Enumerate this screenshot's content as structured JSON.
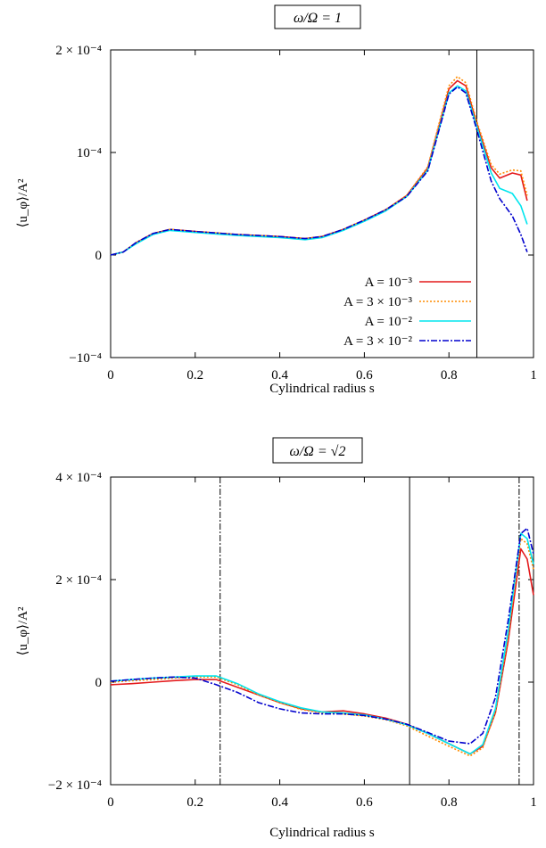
{
  "chart_data": [
    {
      "type": "line",
      "title": "ω/Ω = 1",
      "xlabel": "Cylindrical radius s",
      "ylabel": "⟨u_φ⟩/A²",
      "xlim": [
        0,
        1
      ],
      "ylim": [
        -0.0001,
        0.0002
      ],
      "x_ticks": [
        0,
        0.2,
        0.4,
        0.6,
        0.8,
        1
      ],
      "x_tick_labels": [
        "0",
        "0.2",
        "0.4",
        "0.6",
        "0.8",
        "1"
      ],
      "y_ticks": [
        -0.0001,
        0,
        0.0001,
        0.0002
      ],
      "y_tick_labels": [
        "−10⁻⁴",
        "0",
        "10⁻⁴",
        "2 × 10⁻⁴"
      ],
      "vlines": [
        {
          "x": 0.866,
          "style": "solid"
        }
      ],
      "legend": {
        "position": "bottom-right"
      },
      "series": [
        {
          "name": "A = 10⁻³",
          "color": "#e41a1c",
          "dash": "solid",
          "x": [
            0,
            0.03,
            0.06,
            0.1,
            0.14,
            0.2,
            0.3,
            0.4,
            0.46,
            0.5,
            0.55,
            0.6,
            0.65,
            0.7,
            0.75,
            0.8,
            0.82,
            0.84,
            0.866,
            0.9,
            0.92,
            0.95,
            0.97,
            0.985
          ],
          "y": [
            0,
            3e-06,
            1.2e-05,
            2.1e-05,
            2.5e-05,
            2.3e-05,
            2e-05,
            1.8e-05,
            1.6e-05,
            1.8e-05,
            2.5e-05,
            3.4e-05,
            4.4e-05,
            5.8e-05,
            8.5e-05,
            0.000162,
            0.00017,
            0.000165,
            0.000128,
            8.5e-05,
            7.5e-05,
            8e-05,
            7.8e-05,
            5.3e-05
          ]
        },
        {
          "name": "A = 3 × 10⁻³",
          "color": "#ff8c00",
          "dash": "dotted",
          "x": [
            0,
            0.03,
            0.06,
            0.1,
            0.14,
            0.2,
            0.3,
            0.4,
            0.46,
            0.5,
            0.55,
            0.6,
            0.65,
            0.7,
            0.75,
            0.8,
            0.82,
            0.84,
            0.866,
            0.9,
            0.92,
            0.95,
            0.97,
            0.985
          ],
          "y": [
            0,
            3e-06,
            1.2e-05,
            2.1e-05,
            2.5e-05,
            2.3e-05,
            2e-05,
            1.8e-05,
            1.6e-05,
            1.8e-05,
            2.5e-05,
            3.4e-05,
            4.4e-05,
            5.8e-05,
            8.6e-05,
            0.000165,
            0.000174,
            0.000168,
            0.00013,
            8.8e-05,
            7.9e-05,
            8.3e-05,
            8.2e-05,
            5.8e-05
          ]
        },
        {
          "name": "A = 10⁻²",
          "color": "#00e5ee",
          "dash": "solid",
          "x": [
            0,
            0.03,
            0.06,
            0.1,
            0.14,
            0.2,
            0.3,
            0.4,
            0.46,
            0.5,
            0.55,
            0.6,
            0.65,
            0.7,
            0.75,
            0.8,
            0.82,
            0.84,
            0.866,
            0.9,
            0.92,
            0.95,
            0.97,
            0.985
          ],
          "y": [
            0,
            3e-06,
            1.1e-05,
            2e-05,
            2.4e-05,
            2.2e-05,
            1.9e-05,
            1.7e-05,
            1.5e-05,
            1.7e-05,
            2.4e-05,
            3.3e-05,
            4.3e-05,
            5.7e-05,
            8.3e-05,
            0.000158,
            0.000165,
            0.00016,
            0.000125,
            8e-05,
            6.5e-05,
            6e-05,
            4.8e-05,
            3e-05
          ]
        },
        {
          "name": "A = 3 × 10⁻²",
          "color": "#0000cd",
          "dash": "dashdot",
          "x": [
            0,
            0.03,
            0.06,
            0.1,
            0.14,
            0.2,
            0.3,
            0.4,
            0.46,
            0.5,
            0.55,
            0.6,
            0.65,
            0.7,
            0.75,
            0.8,
            0.82,
            0.84,
            0.866,
            0.9,
            0.92,
            0.95,
            0.97,
            0.985
          ],
          "y": [
            0,
            3e-06,
            1.2e-05,
            2.1e-05,
            2.5e-05,
            2.3e-05,
            2e-05,
            1.8e-05,
            1.6e-05,
            1.8e-05,
            2.5e-05,
            3.4e-05,
            4.4e-05,
            5.7e-05,
            8.2e-05,
            0.000157,
            0.000164,
            0.000158,
            0.000122,
            7.2e-05,
            5.5e-05,
            3.8e-05,
            2e-05,
            3e-06
          ]
        }
      ]
    },
    {
      "type": "line",
      "title": "ω/Ω = √2",
      "xlabel": "Cylindrical radius s",
      "ylabel": "⟨u_φ⟩/A²",
      "xlim": [
        0,
        1
      ],
      "ylim": [
        -0.0002,
        0.0004
      ],
      "x_ticks": [
        0,
        0.2,
        0.4,
        0.6,
        0.8,
        1
      ],
      "x_tick_labels": [
        "0",
        "0.2",
        "0.4",
        "0.6",
        "0.8",
        "1"
      ],
      "y_ticks": [
        -0.0002,
        0,
        0.0002,
        0.0004
      ],
      "y_tick_labels": [
        "−2 × 10⁻⁴",
        "0",
        "2 × 10⁻⁴",
        "4 × 10⁻⁴"
      ],
      "vlines": [
        {
          "x": 0.259,
          "style": "dashdot"
        },
        {
          "x": 0.707,
          "style": "solid"
        },
        {
          "x": 0.966,
          "style": "dashdot"
        }
      ],
      "series": [
        {
          "name": "A = 10⁻³",
          "color": "#e41a1c",
          "dash": "solid",
          "x": [
            0,
            0.05,
            0.1,
            0.15,
            0.2,
            0.25,
            0.3,
            0.35,
            0.4,
            0.45,
            0.5,
            0.55,
            0.6,
            0.65,
            0.7,
            0.75,
            0.8,
            0.85,
            0.88,
            0.91,
            0.94,
            0.97,
            0.985,
            1.0
          ],
          "y": [
            -5e-06,
            -3e-06,
            0,
            3e-06,
            5e-06,
            5e-06,
            -1e-05,
            -2.5e-05,
            -4e-05,
            -5.2e-05,
            -5.8e-05,
            -5.6e-05,
            -6.2e-05,
            -7e-05,
            -8.2e-05,
            -0.0001,
            -0.00012,
            -0.00014,
            -0.000125,
            -6e-05,
            8e-05,
            0.00026,
            0.00024,
            0.00017
          ]
        },
        {
          "name": "A = 3 × 10⁻³",
          "color": "#ff8c00",
          "dash": "dotted",
          "x": [
            0,
            0.05,
            0.1,
            0.15,
            0.2,
            0.25,
            0.3,
            0.35,
            0.4,
            0.45,
            0.5,
            0.55,
            0.6,
            0.65,
            0.7,
            0.75,
            0.8,
            0.85,
            0.88,
            0.91,
            0.94,
            0.97,
            0.985,
            1.0
          ],
          "y": [
            0,
            3e-06,
            5e-06,
            8e-06,
            1e-05,
            1e-05,
            -5e-06,
            -2.5e-05,
            -4e-05,
            -5.3e-05,
            -6e-05,
            -6.2e-05,
            -6.6e-05,
            -7.3e-05,
            -8.5e-05,
            -0.000105,
            -0.000125,
            -0.000144,
            -0.000128,
            -5.8e-05,
            9e-05,
            0.00028,
            0.00027,
            0.00022
          ]
        },
        {
          "name": "A = 10⁻²",
          "color": "#00e5ee",
          "dash": "solid",
          "x": [
            0,
            0.05,
            0.1,
            0.15,
            0.2,
            0.25,
            0.3,
            0.35,
            0.4,
            0.45,
            0.5,
            0.55,
            0.6,
            0.65,
            0.7,
            0.75,
            0.8,
            0.85,
            0.88,
            0.91,
            0.94,
            0.97,
            0.985,
            1.0
          ],
          "y": [
            2e-06,
            5e-06,
            8e-06,
            1e-05,
            1.2e-05,
            1.2e-05,
            -3e-06,
            -2.3e-05,
            -3.8e-05,
            -5e-05,
            -5.8e-05,
            -6e-05,
            -6.4e-05,
            -7.2e-05,
            -8.3e-05,
            -0.0001,
            -0.00012,
            -0.00014,
            -0.000122,
            -5.2e-05,
            0.0001,
            0.00029,
            0.00028,
            0.00023
          ]
        },
        {
          "name": "A = 3 × 10⁻²",
          "color": "#0000cd",
          "dash": "dashdot",
          "x": [
            0,
            0.05,
            0.1,
            0.15,
            0.2,
            0.25,
            0.3,
            0.35,
            0.4,
            0.45,
            0.5,
            0.55,
            0.6,
            0.65,
            0.7,
            0.75,
            0.8,
            0.85,
            0.88,
            0.91,
            0.94,
            0.97,
            0.985,
            1.0
          ],
          "y": [
            2e-06,
            5e-06,
            8e-06,
            1e-05,
            8e-06,
            -5e-06,
            -2e-05,
            -4e-05,
            -5.2e-05,
            -6e-05,
            -6.2e-05,
            -6.2e-05,
            -6.5e-05,
            -7.2e-05,
            -8.2e-05,
            -9.8e-05,
            -0.000115,
            -0.00012,
            -0.0001,
            -3e-05,
            0.00012,
            0.00029,
            0.0003,
            0.00025
          ]
        }
      ]
    }
  ]
}
